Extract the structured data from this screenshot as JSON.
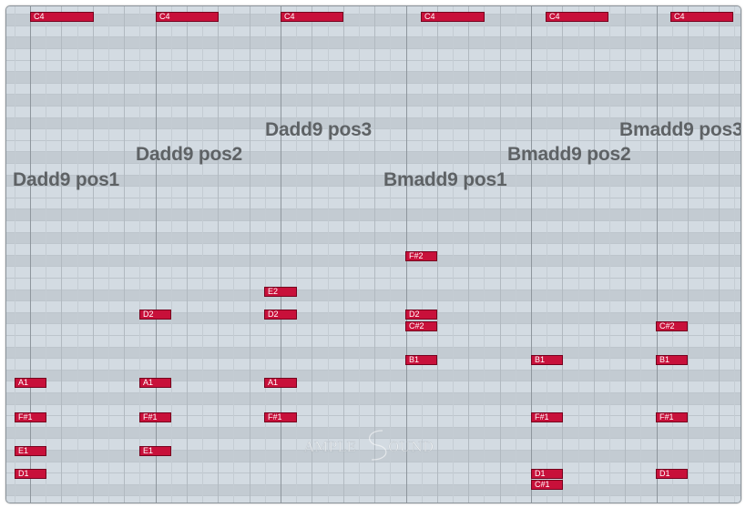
{
  "piano_roll": {
    "chord_labels": [
      {
        "text": "Dadd9 pos1"
      },
      {
        "text": "Dadd9 pos2"
      },
      {
        "text": "Dadd9 pos3"
      },
      {
        "text": "Bmadd9 pos1"
      },
      {
        "text": "Bmadd9 pos2"
      },
      {
        "text": "Bmadd9 pos3"
      }
    ],
    "notes": [
      {
        "label": "C4"
      },
      {
        "label": "C4"
      },
      {
        "label": "C4"
      },
      {
        "label": "C4"
      },
      {
        "label": "C4"
      },
      {
        "label": "C4"
      },
      {
        "label": "F#2"
      },
      {
        "label": "E2"
      },
      {
        "label": "D2"
      },
      {
        "label": "D2"
      },
      {
        "label": "D2"
      },
      {
        "label": "C#2"
      },
      {
        "label": "C#2"
      },
      {
        "label": "B1"
      },
      {
        "label": "B1"
      },
      {
        "label": "B1"
      },
      {
        "label": "A1"
      },
      {
        "label": "A1"
      },
      {
        "label": "A1"
      },
      {
        "label": "F#1"
      },
      {
        "label": "F#1"
      },
      {
        "label": "F#1"
      },
      {
        "label": "F#1"
      },
      {
        "label": "F#1"
      },
      {
        "label": "E1"
      },
      {
        "label": "E1"
      },
      {
        "label": "D1"
      },
      {
        "label": "D1"
      },
      {
        "label": "D1"
      },
      {
        "label": "C#1"
      }
    ],
    "watermark": {
      "text": "AMPLE SOUND"
    },
    "colors": {
      "note_fill": "#c8103a",
      "note_border": "#76001e",
      "grid_background": "#d2dae1",
      "chord_label": "#5e6265"
    }
  }
}
